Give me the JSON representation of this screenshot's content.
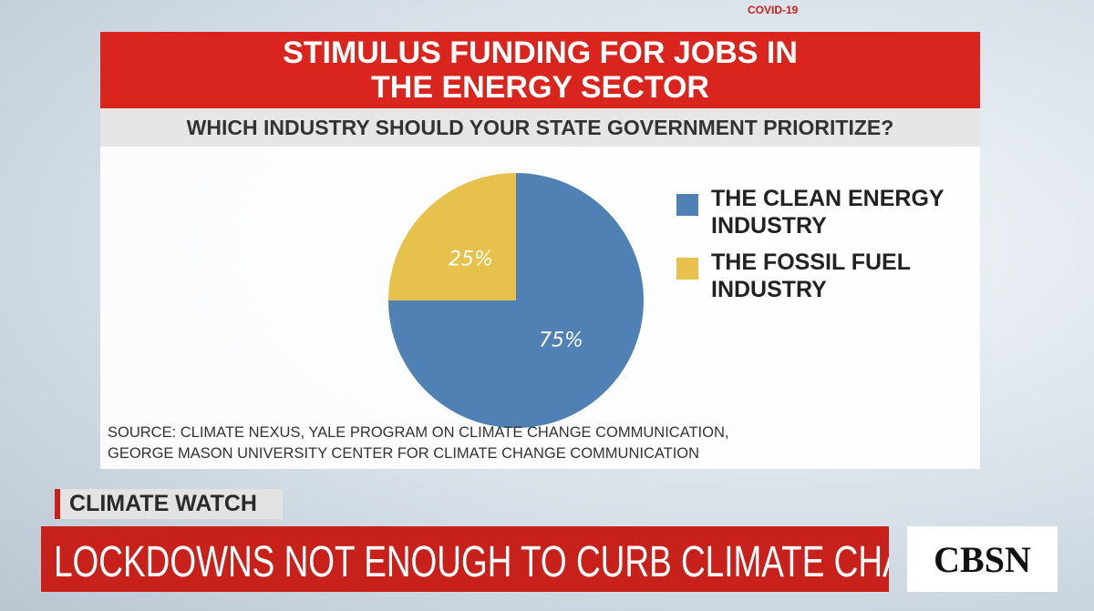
{
  "chart_data": {
    "type": "pie",
    "title": "STIMULUS FUNDING FOR JOBS IN THE ENERGY SECTOR",
    "subtitle": "WHICH INDUSTRY SHOULD YOUR STATE GOVERNMENT PRIORITIZE?",
    "categories": [
      "THE CLEAN ENERGY INDUSTRY",
      "THE FOSSIL FUEL INDUSTRY"
    ],
    "values": [
      75,
      25
    ],
    "value_labels": [
      "75%",
      "25%"
    ],
    "colors": [
      "#4f81b5",
      "#e6c14c"
    ],
    "source": "SOURCE: CLIMATE NEXUS, YALE PROGRAM ON CLIMATE CHANGE COMMUNICATION, GEORGE MASON UNIVERSITY CENTER FOR CLIMATE CHANGE COMMUNICATION"
  },
  "broadcast": {
    "tag": "COVID-19",
    "section": "CLIMATE WATCH",
    "headline": "LOCKDOWNS NOT ENOUGH TO CURB CLIMATE CHANGE",
    "network": "CBSN"
  }
}
